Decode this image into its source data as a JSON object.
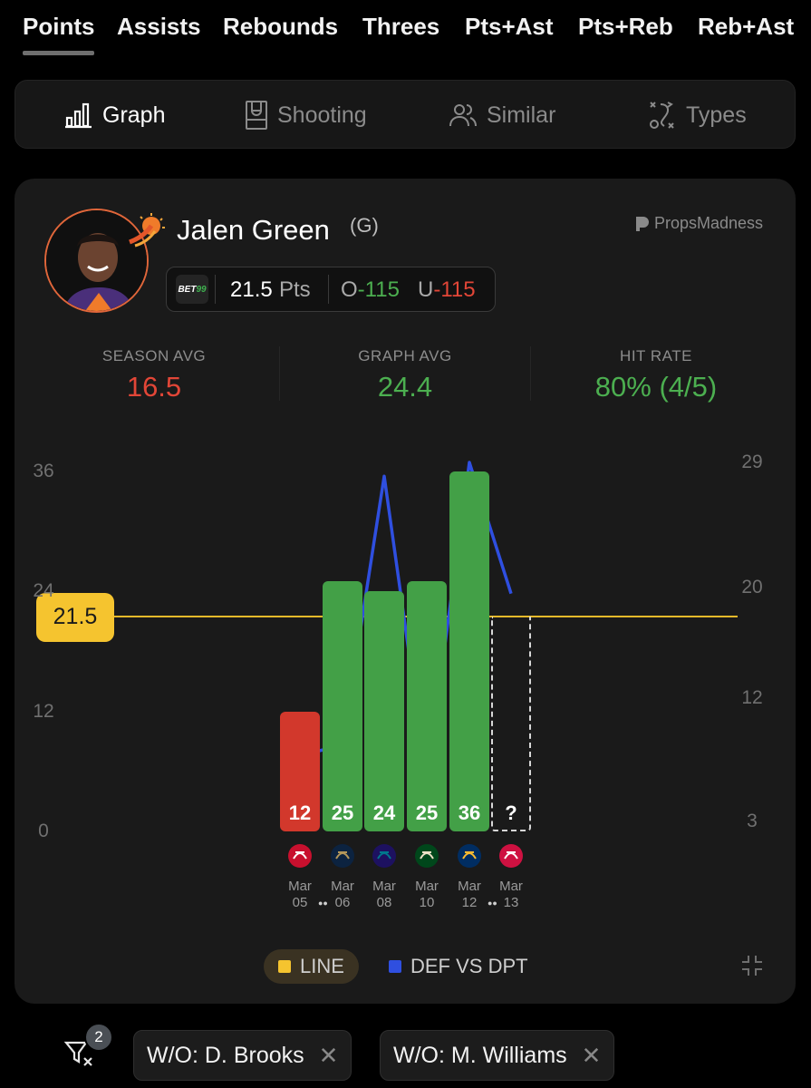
{
  "stat_tabs": [
    {
      "label": "Points",
      "active": true
    },
    {
      "label": "Assists",
      "active": false
    },
    {
      "label": "Rebounds",
      "active": false
    },
    {
      "label": "Threes",
      "active": false
    },
    {
      "label": "Pts+Ast",
      "active": false
    },
    {
      "label": "Pts+Reb",
      "active": false
    },
    {
      "label": "Reb+Ast",
      "active": false
    }
  ],
  "view_tabs": [
    {
      "label": "Graph",
      "icon": "bar-chart-icon",
      "active": true
    },
    {
      "label": "Shooting",
      "icon": "court-icon",
      "active": false
    },
    {
      "label": "Similar",
      "icon": "users-icon",
      "active": false
    },
    {
      "label": "Types",
      "icon": "play-diagram-icon",
      "active": false
    }
  ],
  "player": {
    "name": "Jalen Green",
    "position": "(G)",
    "team_logo": "suns-logo-icon"
  },
  "brand": "PropsMadness",
  "line": {
    "book": "BET99",
    "value": "21.5",
    "unit": "Pts",
    "over_label": "O",
    "over_odds": "-115",
    "under_label": "U",
    "under_odds": "-115"
  },
  "stats": [
    {
      "label": "SEASON AVG",
      "value": "16.5",
      "color": "#e24637"
    },
    {
      "label": "GRAPH AVG",
      "value": "24.4",
      "color": "#4caf50"
    },
    {
      "label": "HIT RATE",
      "value": "80% (4/5)",
      "color": "#4caf50"
    }
  ],
  "chart_data": {
    "type": "bar",
    "categories": [
      "Mar 05",
      "Mar 06",
      "Mar 08",
      "Mar 10",
      "Mar 12",
      "Mar 13"
    ],
    "opponents": [
      "Bulls",
      "Pelicans",
      "Hornets",
      "Bucks",
      "Pacers",
      "Raptors"
    ],
    "values": [
      12,
      25,
      24,
      25,
      36,
      null
    ],
    "value_labels": [
      "12",
      "25",
      "24",
      "25",
      "36",
      "?"
    ],
    "line": 21.5,
    "line_label": "21.5",
    "left_axis": {
      "ticks": [
        "36",
        "24",
        "12",
        "0"
      ],
      "ylim": [
        0,
        36
      ]
    },
    "right_axis": {
      "ticks": [
        "29",
        "20",
        "12",
        "3"
      ],
      "ylim": [
        3,
        29
      ]
    },
    "def_vs_dpt": [
      7.8,
      8.5,
      28,
      6,
      29,
      19.5
    ],
    "colors": {
      "hit": "#43a047",
      "miss": "#d2382c",
      "line": "#e8b92a",
      "def": "#2f4fe0"
    },
    "gaps_after": [
      0,
      4
    ],
    "legend": [
      {
        "label": "LINE",
        "color": "#f5c42f"
      },
      {
        "label": "DEF VS DPT",
        "color": "#2f4fe0"
      }
    ]
  },
  "filters": {
    "count": "2",
    "chips": [
      {
        "label": "W/O: D. Brooks"
      },
      {
        "label": "W/O: M. Williams"
      }
    ]
  }
}
